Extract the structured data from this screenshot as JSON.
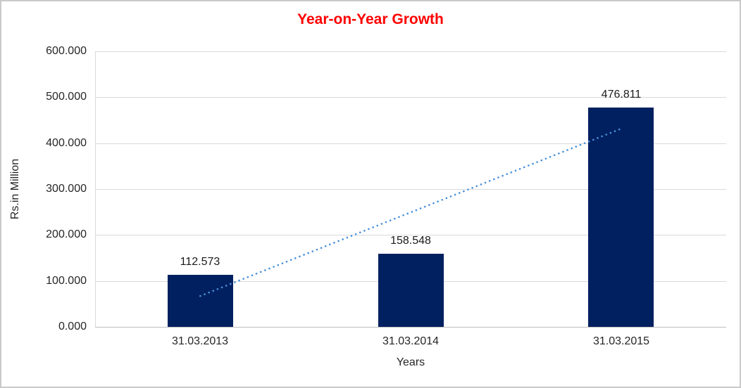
{
  "chart_data": {
    "type": "bar",
    "title": "Year-on-Year Growth",
    "title_color": "#ff0000",
    "categories": [
      "31.03.2013",
      "31.03.2014",
      "31.03.2015"
    ],
    "values": [
      112.573,
      158.548,
      476.811
    ],
    "data_labels": [
      "112.573",
      "158.548",
      "476.811"
    ],
    "xlabel": "Years",
    "ylabel": "Rs.in Million",
    "ylim": [
      0,
      600
    ],
    "ytick_step": 100,
    "ytick_labels": [
      "0.000",
      "100.000",
      "200.000",
      "300.000",
      "400.000",
      "500.000",
      "600.000"
    ],
    "grid": true,
    "legend": "none",
    "bar_color": "#002060",
    "trendline": {
      "style": "dotted",
      "color": "#4a90d9",
      "y_start": 67.2,
      "y_end": 431.4
    }
  }
}
